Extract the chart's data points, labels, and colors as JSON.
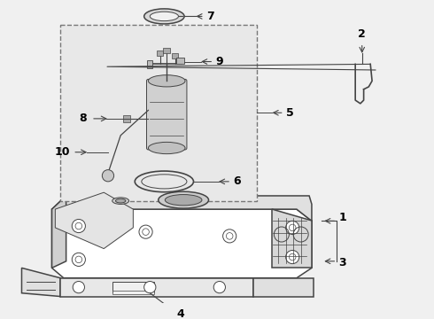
{
  "bg_color": "#f0f0f0",
  "line_color": "#444444",
  "box_color": "#e8e8e8",
  "box_edge": "#777777",
  "tank_face": "#ffffff",
  "tank_top": "#e0e0e0",
  "tank_left": "#d0d0d0"
}
